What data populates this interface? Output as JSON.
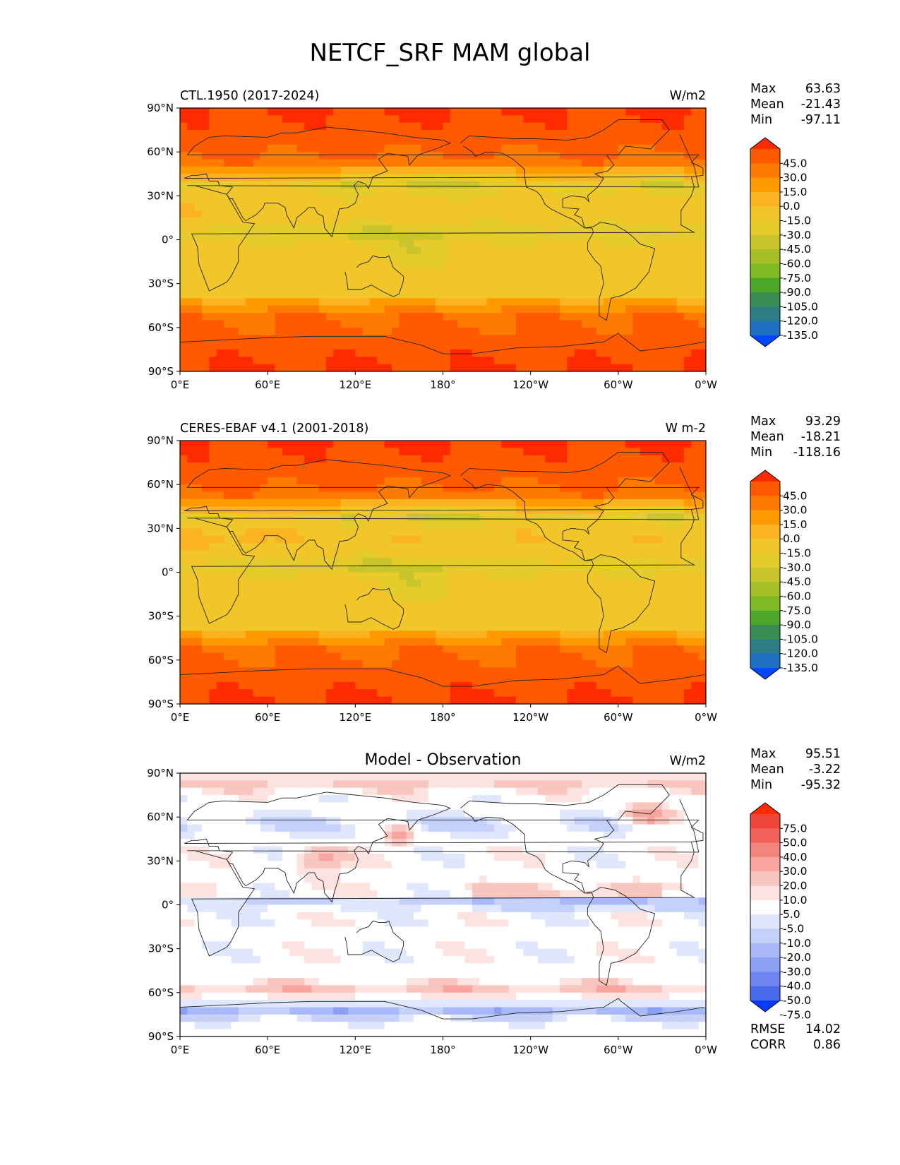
{
  "title": "NETCF_SRF MAM global",
  "x_ticks": [
    "0°E",
    "60°E",
    "120°E",
    "180°",
    "120°W",
    "60°W",
    "0°W"
  ],
  "y_ticks": [
    "90°N",
    "60°N",
    "30°N",
    "0°",
    "30°S",
    "60°S",
    "90°S"
  ],
  "panels": [
    {
      "id": "model",
      "left_title": "CTL.1950 (2017-2024)",
      "center_title": "",
      "units": "W/m2",
      "stats": [
        [
          "Max",
          "63.63"
        ],
        [
          "Mean",
          "-21.43"
        ],
        [
          "Min",
          "-97.11"
        ]
      ],
      "colorbar": {
        "labels": [
          "45.0",
          "30.0",
          "15.0",
          "0.0",
          "-15.0",
          "-30.0",
          "-45.0",
          "-60.0",
          "-75.0",
          "-90.0",
          "-105.0",
          "-120.0",
          "-135.0"
        ],
        "colors": [
          "#ff2a00",
          "#ff5a00",
          "#ff7a00",
          "#ff9a00",
          "#fbb320",
          "#f0c628",
          "#e6cb2c",
          "#c9c52a",
          "#a8c027",
          "#7dba24",
          "#4ca729",
          "#3a8e55",
          "#2d7c86",
          "#1f6fc4",
          "#0047ff"
        ]
      }
    },
    {
      "id": "obs",
      "left_title": "CERES-EBAF v4.1 (2001-2018)",
      "center_title": "",
      "units": "W m-2",
      "stats": [
        [
          "Max",
          "93.29"
        ],
        [
          "Mean",
          "-18.21"
        ],
        [
          "Min",
          "-118.16"
        ]
      ],
      "colorbar": {
        "labels": [
          "45.0",
          "30.0",
          "15.0",
          "0.0",
          "-15.0",
          "-30.0",
          "-45.0",
          "-60.0",
          "-75.0",
          "-90.0",
          "-105.0",
          "-120.0",
          "-135.0"
        ],
        "colors": [
          "#ff2a00",
          "#ff5a00",
          "#ff7a00",
          "#ff9a00",
          "#fbb320",
          "#f0c628",
          "#e6cb2c",
          "#c9c52a",
          "#a8c027",
          "#7dba24",
          "#4ca729",
          "#3a8e55",
          "#2d7c86",
          "#1f6fc4",
          "#0047ff"
        ]
      }
    },
    {
      "id": "diff",
      "left_title": "",
      "center_title": "Model - Observation",
      "units": "W/m2",
      "stats": [
        [
          "Max",
          "95.51"
        ],
        [
          "Mean",
          "-3.22"
        ],
        [
          "Min",
          "-95.32"
        ]
      ],
      "extra_stats": [
        [
          "RMSE",
          "14.02"
        ],
        [
          "CORR",
          "0.86"
        ]
      ],
      "colorbar": {
        "labels": [
          "75.0",
          "50.0",
          "40.0",
          "30.0",
          "20.0",
          "10.0",
          "5.0",
          "-5.0",
          "-10.0",
          "-20.0",
          "-30.0",
          "-40.0",
          "-50.0",
          "-75.0"
        ],
        "colors": [
          "#ff2a00",
          "#f0453a",
          "#f2625a",
          "#f4857d",
          "#f7a59e",
          "#f9c5bf",
          "#fce3e0",
          "#ffffff",
          "#e0e6fc",
          "#c6d1fa",
          "#a9b9f7",
          "#8ba0f3",
          "#6d86ef",
          "#4a6aee",
          "#0a3cff"
        ]
      }
    }
  ]
}
